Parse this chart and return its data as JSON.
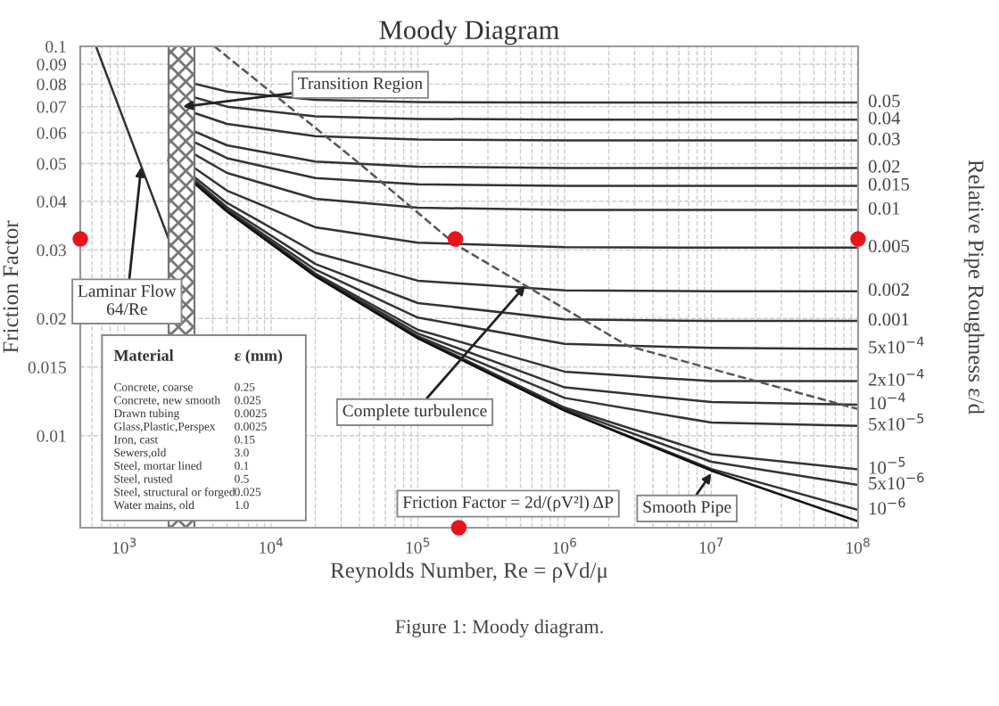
{
  "chart_data": {
    "type": "line",
    "title": "Moody Diagram",
    "xlabel": "Reynolds Number, Re = ρVd/μ",
    "ylabel": "Friction Factor",
    "y2label": "Relative Pipe Roughness ε/d",
    "log": "xy",
    "grid": true,
    "xlim": [
      500,
      100000000
    ],
    "ylim": [
      0.0058,
      0.1
    ],
    "xticks": [
      {
        "value": 1000,
        "label": "10$^{3}$"
      },
      {
        "value": 10000,
        "label": "10$^{4}$"
      },
      {
        "value": 100000,
        "label": "10$^{5}$"
      },
      {
        "value": 1000000,
        "label": "10$^{6}$"
      },
      {
        "value": 10000000,
        "label": "10$^{7}$"
      },
      {
        "value": 100000000,
        "label": "10$^{8}$"
      }
    ],
    "yticks": [
      0.01,
      0.015,
      0.02,
      0.03,
      0.04,
      0.05,
      0.06,
      0.07,
      0.08,
      0.09,
      0.1
    ],
    "x": [
      2000,
      5000,
      20000,
      100000,
      1000000,
      10000000,
      100000000
    ],
    "series": [
      {
        "name": "0.05",
        "color": "#333333",
        "values": [
          0.0832,
          0.0765,
          0.0729,
          0.0719,
          0.0717,
          0.0717,
          0.0717
        ]
      },
      {
        "name": "0.04",
        "color": "#333333",
        "values": [
          0.0772,
          0.07,
          0.0661,
          0.0651,
          0.0648,
          0.0648,
          0.0648
        ]
      },
      {
        "name": "0.03",
        "color": "#333333",
        "values": [
          0.071,
          0.0632,
          0.0588,
          0.0576,
          0.0573,
          0.0573,
          0.0573
        ]
      },
      {
        "name": "0.02",
        "color": "#333333",
        "values": [
          0.0645,
          0.0557,
          0.0506,
          0.0491,
          0.0487,
          0.0487,
          0.0487
        ]
      },
      {
        "name": "0.015",
        "color": "#333333",
        "values": [
          0.0611,
          0.0516,
          0.0459,
          0.0442,
          0.0438,
          0.0438,
          0.0438
        ]
      },
      {
        "name": "0.01",
        "color": "#333333",
        "values": [
          0.0577,
          0.0473,
          0.0406,
          0.0385,
          0.038,
          0.038,
          0.038
        ]
      },
      {
        "name": "0.005",
        "color": "#333333",
        "values": [
          0.0542,
          0.0426,
          0.0343,
          0.0313,
          0.0305,
          0.0304,
          0.0304
        ]
      },
      {
        "name": "0.002",
        "color": "#333333",
        "values": [
          0.0521,
          0.0396,
          0.0295,
          0.025,
          0.0236,
          0.0235,
          0.0235
        ]
      },
      {
        "name": "0.001",
        "color": "#333333",
        "values": [
          0.0515,
          0.0386,
          0.0276,
          0.0219,
          0.0199,
          0.0197,
          0.0197
        ]
      },
      {
        "name": "5x10$^{−4}$",
        "color": "#333333",
        "values": [
          0.0512,
          0.0381,
          0.0267,
          0.0201,
          0.0172,
          0.0168,
          0.0167
        ]
      },
      {
        "name": "2x10$^{−4}$",
        "color": "#333333",
        "values": [
          0.051,
          0.0379,
          0.0261,
          0.0187,
          0.0146,
          0.0138,
          0.0138
        ]
      },
      {
        "name": "10$^{−4}$",
        "color": "#333333",
        "values": [
          0.0509,
          0.0378,
          0.0259,
          0.0183,
          0.0133,
          0.0122,
          0.012
        ]
      },
      {
        "name": "5x10$^{−5}$",
        "color": "#333333",
        "values": [
          0.0509,
          0.0377,
          0.0258,
          0.018,
          0.0125,
          0.0108,
          0.0106
        ]
      },
      {
        "name": "10$^{−5}$",
        "color": "#333333",
        "values": [
          0.0509,
          0.0377,
          0.0257,
          0.0179,
          0.0118,
          0.00896,
          0.00819
        ]
      },
      {
        "name": "5x10$^{−6}$",
        "color": "#333333",
        "values": [
          0.0509,
          0.0377,
          0.0257,
          0.0179,
          0.0117,
          0.00857,
          0.00747
        ]
      },
      {
        "name": "10$^{−6}$",
        "color": "#333333",
        "values": [
          0.0509,
          0.0377,
          0.0257,
          0.0178,
          0.0116,
          0.00821,
          0.00644
        ]
      },
      {
        "color": "#111111",
        "values": [
          0.0509,
          0.0377,
          0.0257,
          0.0178,
          0.0116,
          0.00813,
          0.00602
        ]
      },
      {
        "color": "#333333",
        "x": [
          640,
          2100
        ],
        "values": [
          0.1,
          0.0305
        ]
      },
      {
        "color": "#555555",
        "line_style": "dashed",
        "x": [
          4100,
          40000,
          180000,
          2700000,
          100000000
        ],
        "values": [
          0.1,
          0.05,
          0.031,
          0.017,
          0.0117
        ]
      },
      {
        "type": "scatter",
        "color": "#e8141c",
        "marker": "circle",
        "x": [
          500,
          180000,
          100000000,
          190000
        ],
        "values": [
          0.032,
          0.032,
          0.032,
          0.0058
        ]
      }
    ],
    "bands": [
      {
        "axis": "x",
        "from": 2000,
        "to": 3000,
        "color": "#777777"
      }
    ],
    "annotations": [
      {
        "text": "Laminar Flow\n64/Re",
        "x": 1300,
        "y": 0.049
      },
      {
        "text": "Transition Region",
        "x": 2500,
        "y": 0.07
      },
      {
        "text": "Complete turbulence",
        "x": 540000,
        "y": 0.0243
      },
      {
        "text": "Smooth Pipe",
        "x": 10000000,
        "y": 0.008
      },
      "Friction Factor = 2d/(ρV²l) ΔP",
      "Material\tε (mm)\nConcrete, coarse\t0.25\nConcrete, new smooth\t0.025\nDrawn tubing\t0.0025\nGlass,Plastic,Perspex\t0.0025\nIron, cast\t0.15\nSewers,old\t3.0\nSteel, mortar lined\t0.1\nSteel, rusted\t0.5\nSteel, structural or forged\t0.025\nWater mains, old\t1.0",
      "Figure 1: Moody diagram."
    ]
  }
}
